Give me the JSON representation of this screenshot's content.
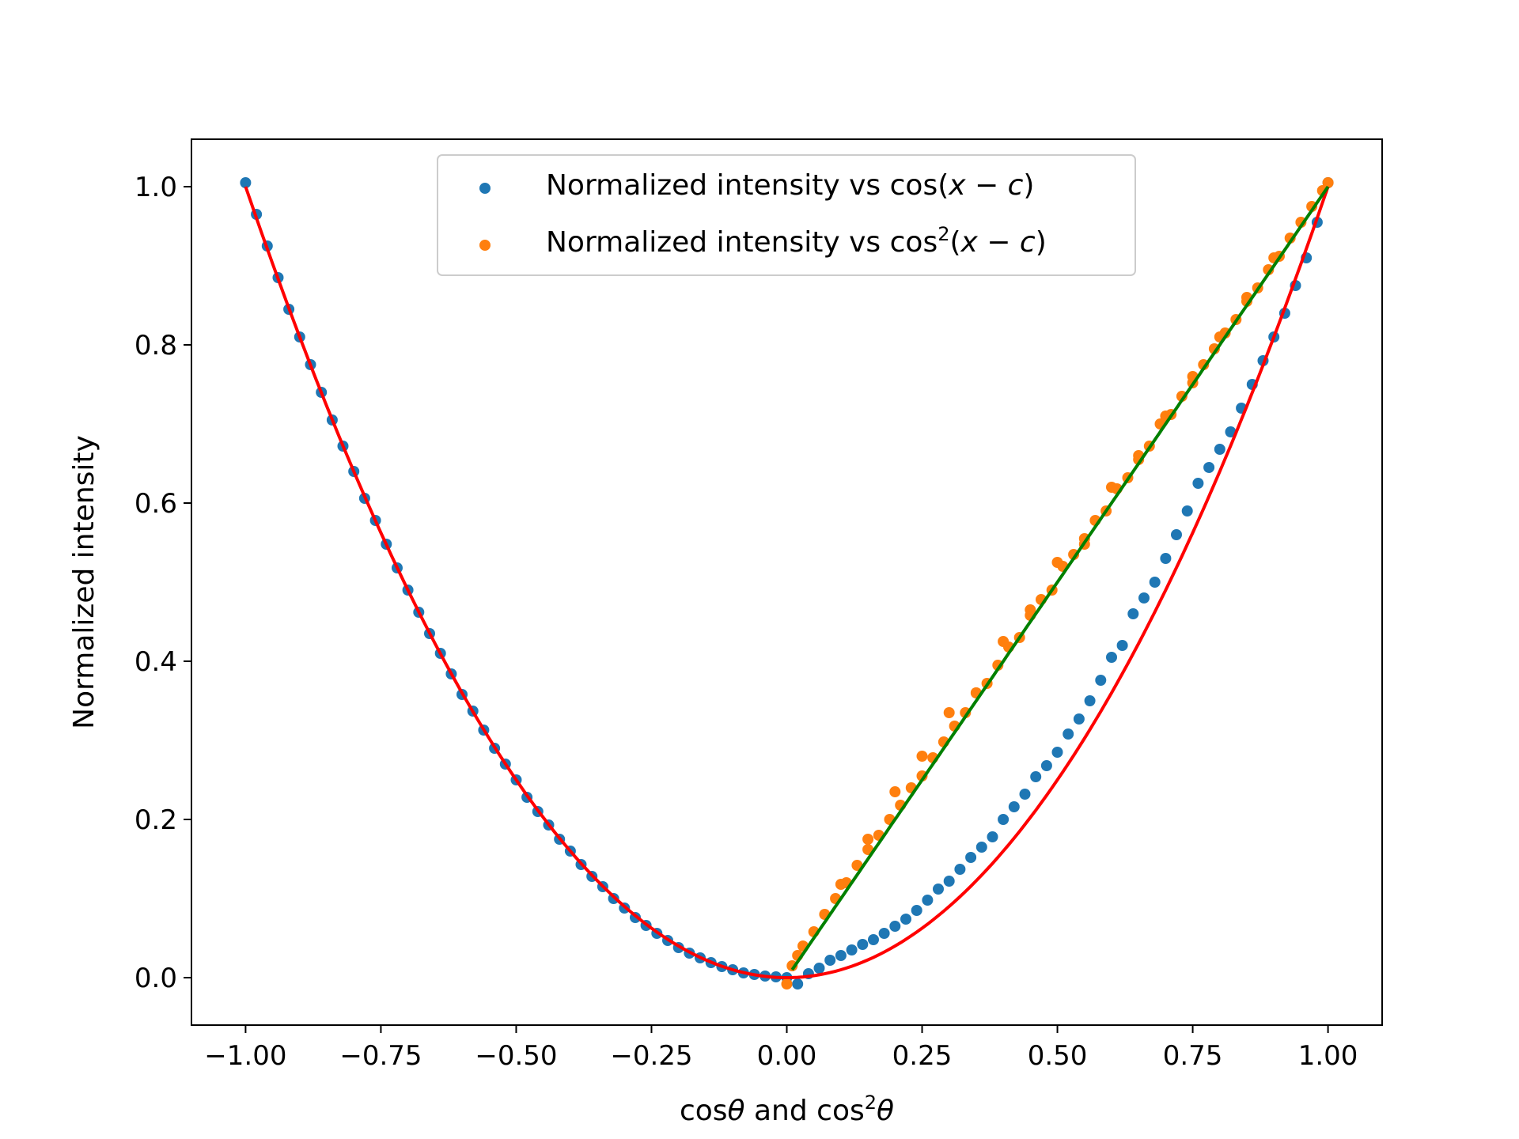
{
  "chart_data": {
    "type": "scatter",
    "title": "",
    "xlabel_parts": {
      "a": "cos",
      "b": "θ",
      "c": " and cos",
      "sup": "2",
      "d": "θ"
    },
    "ylabel": "Normalized intensity",
    "xlim": [
      -1.1,
      1.1
    ],
    "ylim": [
      -0.06,
      1.06
    ],
    "xticks": [
      -1.0,
      -0.75,
      -0.5,
      -0.25,
      0.0,
      0.25,
      0.5,
      0.75,
      1.0
    ],
    "xtick_labels": [
      "−1.00",
      "−0.75",
      "−0.50",
      "−0.25",
      "0.00",
      "0.25",
      "0.50",
      "0.75",
      "1.00"
    ],
    "yticks": [
      0.0,
      0.2,
      0.4,
      0.6,
      0.8,
      1.0
    ],
    "ytick_labels": [
      "0.0",
      "0.2",
      "0.4",
      "0.6",
      "0.8",
      "1.0"
    ],
    "grid": false,
    "legend_position": "upper-center",
    "legend": [
      {
        "parts": {
          "a": "Normalized intensity vs cos(",
          "x": "x",
          "minus": " − ",
          "c": "c",
          "close": ")"
        },
        "color": "#1f77b4"
      },
      {
        "parts": {
          "a": "Normalized intensity vs cos",
          "sup": "2",
          "open": "(",
          "x": "x",
          "minus": " − ",
          "c": "c",
          "close": ")"
        },
        "color": "#ff7f0e"
      }
    ],
    "series": [
      {
        "kind": "scatter",
        "color": "#1f77b4",
        "points": [
          [
            -1.0,
            1.005
          ],
          [
            -0.98,
            0.965
          ],
          [
            -0.96,
            0.925
          ],
          [
            -0.94,
            0.885
          ],
          [
            -0.92,
            0.845
          ],
          [
            -0.9,
            0.81
          ],
          [
            -0.88,
            0.775
          ],
          [
            -0.86,
            0.74
          ],
          [
            -0.84,
            0.705
          ],
          [
            -0.82,
            0.672
          ],
          [
            -0.8,
            0.64
          ],
          [
            -0.78,
            0.606
          ],
          [
            -0.76,
            0.578
          ],
          [
            -0.74,
            0.548
          ],
          [
            -0.72,
            0.518
          ],
          [
            -0.7,
            0.49
          ],
          [
            -0.68,
            0.462
          ],
          [
            -0.66,
            0.435
          ],
          [
            -0.64,
            0.41
          ],
          [
            -0.62,
            0.384
          ],
          [
            -0.6,
            0.358
          ],
          [
            -0.58,
            0.337
          ],
          [
            -0.56,
            0.313
          ],
          [
            -0.54,
            0.29
          ],
          [
            -0.52,
            0.27
          ],
          [
            -0.5,
            0.25
          ],
          [
            -0.48,
            0.228
          ],
          [
            -0.46,
            0.21
          ],
          [
            -0.44,
            0.193
          ],
          [
            -0.42,
            0.175
          ],
          [
            -0.4,
            0.16
          ],
          [
            -0.38,
            0.143
          ],
          [
            -0.36,
            0.128
          ],
          [
            -0.34,
            0.115
          ],
          [
            -0.32,
            0.1
          ],
          [
            -0.3,
            0.088
          ],
          [
            -0.28,
            0.076
          ],
          [
            -0.26,
            0.066
          ],
          [
            -0.24,
            0.056
          ],
          [
            -0.22,
            0.047
          ],
          [
            -0.2,
            0.038
          ],
          [
            -0.18,
            0.031
          ],
          [
            -0.16,
            0.025
          ],
          [
            -0.14,
            0.019
          ],
          [
            -0.12,
            0.014
          ],
          [
            -0.1,
            0.01
          ],
          [
            -0.08,
            0.006
          ],
          [
            -0.06,
            0.004
          ],
          [
            -0.04,
            0.002
          ],
          [
            -0.02,
            0.001
          ],
          [
            0.0,
            0.0
          ],
          [
            0.02,
            -0.008
          ],
          [
            0.04,
            0.005
          ],
          [
            0.06,
            0.012
          ],
          [
            0.08,
            0.022
          ],
          [
            0.1,
            0.028
          ],
          [
            0.12,
            0.035
          ],
          [
            0.14,
            0.042
          ],
          [
            0.16,
            0.048
          ],
          [
            0.18,
            0.056
          ],
          [
            0.2,
            0.065
          ],
          [
            0.22,
            0.074
          ],
          [
            0.24,
            0.085
          ],
          [
            0.26,
            0.098
          ],
          [
            0.28,
            0.112
          ],
          [
            0.3,
            0.122
          ],
          [
            0.32,
            0.137
          ],
          [
            0.34,
            0.152
          ],
          [
            0.36,
            0.165
          ],
          [
            0.38,
            0.178
          ],
          [
            0.4,
            0.2
          ],
          [
            0.42,
            0.216
          ],
          [
            0.44,
            0.232
          ],
          [
            0.46,
            0.254
          ],
          [
            0.48,
            0.268
          ],
          [
            0.5,
            0.285
          ],
          [
            0.52,
            0.308
          ],
          [
            0.54,
            0.327
          ],
          [
            0.56,
            0.35
          ],
          [
            0.58,
            0.376
          ],
          [
            0.6,
            0.405
          ],
          [
            0.62,
            0.42
          ],
          [
            0.64,
            0.46
          ],
          [
            0.66,
            0.48
          ],
          [
            0.68,
            0.5
          ],
          [
            0.7,
            0.53
          ],
          [
            0.72,
            0.56
          ],
          [
            0.74,
            0.59
          ],
          [
            0.76,
            0.625
          ],
          [
            0.78,
            0.645
          ],
          [
            0.8,
            0.668
          ],
          [
            0.82,
            0.69
          ],
          [
            0.84,
            0.72
          ],
          [
            0.86,
            0.75
          ],
          [
            0.88,
            0.78
          ],
          [
            0.9,
            0.81
          ],
          [
            0.92,
            0.84
          ],
          [
            0.94,
            0.875
          ],
          [
            0.96,
            0.91
          ],
          [
            0.98,
            0.955
          ],
          [
            1.0,
            1.005
          ]
        ]
      },
      {
        "kind": "scatter",
        "color": "#ff7f0e",
        "points": [
          [
            0.0,
            -0.008
          ],
          [
            0.01,
            0.015
          ],
          [
            0.02,
            0.028
          ],
          [
            0.03,
            0.04
          ],
          [
            0.05,
            0.058
          ],
          [
            0.07,
            0.08
          ],
          [
            0.09,
            0.1
          ],
          [
            0.11,
            0.12
          ],
          [
            0.13,
            0.142
          ],
          [
            0.15,
            0.162
          ],
          [
            0.17,
            0.18
          ],
          [
            0.19,
            0.2
          ],
          [
            0.21,
            0.218
          ],
          [
            0.23,
            0.24
          ],
          [
            0.25,
            0.255
          ],
          [
            0.27,
            0.278
          ],
          [
            0.29,
            0.298
          ],
          [
            0.31,
            0.318
          ],
          [
            0.33,
            0.335
          ],
          [
            0.35,
            0.36
          ],
          [
            0.37,
            0.372
          ],
          [
            0.39,
            0.395
          ],
          [
            0.41,
            0.418
          ],
          [
            0.43,
            0.43
          ],
          [
            0.45,
            0.458
          ],
          [
            0.47,
            0.478
          ],
          [
            0.49,
            0.49
          ],
          [
            0.51,
            0.52
          ],
          [
            0.53,
            0.535
          ],
          [
            0.55,
            0.548
          ],
          [
            0.57,
            0.578
          ],
          [
            0.59,
            0.59
          ],
          [
            0.61,
            0.618
          ],
          [
            0.63,
            0.632
          ],
          [
            0.65,
            0.655
          ],
          [
            0.67,
            0.672
          ],
          [
            0.69,
            0.7
          ],
          [
            0.71,
            0.712
          ],
          [
            0.73,
            0.735
          ],
          [
            0.75,
            0.752
          ],
          [
            0.77,
            0.775
          ],
          [
            0.79,
            0.795
          ],
          [
            0.81,
            0.815
          ],
          [
            0.83,
            0.832
          ],
          [
            0.85,
            0.855
          ],
          [
            0.87,
            0.872
          ],
          [
            0.89,
            0.895
          ],
          [
            0.91,
            0.912
          ],
          [
            0.93,
            0.935
          ],
          [
            0.95,
            0.955
          ],
          [
            0.97,
            0.975
          ],
          [
            0.99,
            0.995
          ],
          [
            1.0,
            1.005
          ],
          [
            0.2,
            0.235
          ],
          [
            0.3,
            0.335
          ],
          [
            0.4,
            0.425
          ],
          [
            0.5,
            0.525
          ],
          [
            0.6,
            0.62
          ],
          [
            0.7,
            0.71
          ],
          [
            0.8,
            0.81
          ],
          [
            0.9,
            0.91
          ],
          [
            0.35,
            0.36
          ],
          [
            0.45,
            0.465
          ],
          [
            0.55,
            0.555
          ],
          [
            0.65,
            0.66
          ],
          [
            0.75,
            0.76
          ],
          [
            0.85,
            0.86
          ],
          [
            0.15,
            0.175
          ],
          [
            0.25,
            0.28
          ],
          [
            0.1,
            0.118
          ]
        ]
      },
      {
        "kind": "line",
        "color": "#ff0000",
        "function": "y = x^2",
        "x_range": [
          -1.0,
          1.0
        ]
      },
      {
        "kind": "line",
        "color": "#008000",
        "function": "y = x",
        "x_range": [
          0.01,
          1.0
        ]
      }
    ]
  }
}
